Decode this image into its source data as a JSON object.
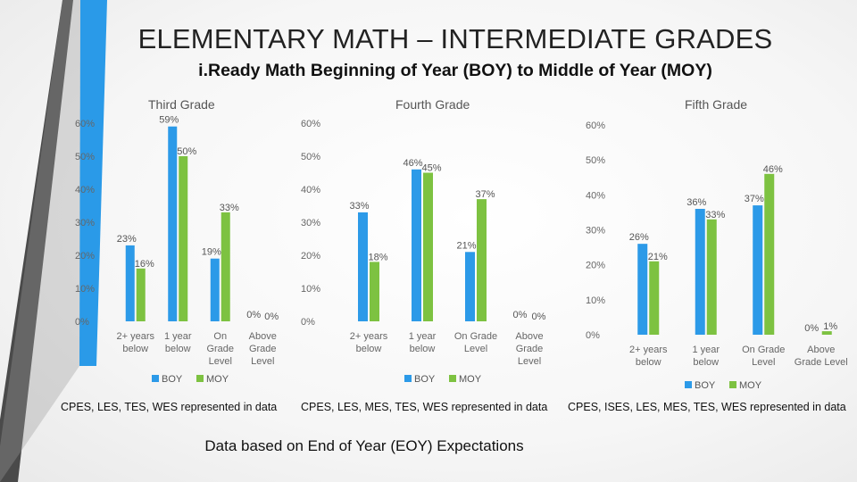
{
  "slide": {
    "title": "ELEMENTARY MATH – INTERMEDIATE GRADES",
    "subtitle": "i.Ready Math Beginning of Year (BOY) to Middle of Year (MOY)",
    "footer": "Data based on End of Year (EOY) Expectations"
  },
  "colors": {
    "boy": "#2c9ae8",
    "moy": "#7dc241",
    "accent_dark": "#4a4a4a",
    "accent_blue": "#2a9ae8"
  },
  "chart_data": [
    {
      "type": "bar",
      "title": "Third Grade",
      "note": "CPES, LES, TES, WES represented in data",
      "categories": [
        [
          "2+ years",
          "below"
        ],
        [
          "1 year",
          "below"
        ],
        [
          "On",
          "Grade",
          "Level"
        ],
        [
          "Above",
          "Grade",
          "Level"
        ]
      ],
      "series": [
        {
          "name": "BOY",
          "values": [
            23,
            59,
            19,
            0
          ],
          "labels": [
            "23%",
            "59%",
            "19%",
            "0%"
          ]
        },
        {
          "name": "MOY",
          "values": [
            16,
            50,
            33,
            0
          ],
          "labels": [
            "16%",
            "50%",
            "33%",
            "0%"
          ]
        }
      ],
      "yticks": [
        "0%",
        "10%",
        "20%",
        "30%",
        "40%",
        "50%",
        "60%"
      ],
      "ylim": [
        0,
        60
      ],
      "legend": "bottom",
      "grid": false
    },
    {
      "type": "bar",
      "title": "Fourth Grade",
      "note": "CPES, LES, MES, TES, WES represented in data",
      "categories": [
        [
          "2+ years",
          "below"
        ],
        [
          "1 year",
          "below"
        ],
        [
          "On Grade",
          "Level"
        ],
        [
          "Above",
          "Grade",
          "Level"
        ]
      ],
      "series": [
        {
          "name": "BOY",
          "values": [
            33,
            46,
            21,
            0
          ],
          "labels": [
            "33%",
            "46%",
            "21%",
            "0%"
          ]
        },
        {
          "name": "MOY",
          "values": [
            18,
            45,
            37,
            0
          ],
          "labels": [
            "18%",
            "45%",
            "37%",
            "0%"
          ]
        }
      ],
      "yticks": [
        "0%",
        "10%",
        "20%",
        "30%",
        "40%",
        "50%",
        "60%"
      ],
      "ylim": [
        0,
        60
      ],
      "legend": "bottom",
      "grid": false
    },
    {
      "type": "bar",
      "title": "Fifth Grade",
      "note": "CPES, ISES, LES, MES, TES, WES represented in data",
      "categories": [
        [
          "2+ years",
          "below"
        ],
        [
          "1 year",
          "below"
        ],
        [
          "On Grade",
          "Level"
        ],
        [
          "Above",
          "Grade Level"
        ]
      ],
      "series": [
        {
          "name": "BOY",
          "values": [
            26,
            36,
            37,
            0
          ],
          "labels": [
            "26%",
            "36%",
            "37%",
            "0%"
          ]
        },
        {
          "name": "MOY",
          "values": [
            21,
            33,
            46,
            1
          ],
          "labels": [
            "21%",
            "33%",
            "46%",
            "1%"
          ]
        }
      ],
      "yticks": [
        "0%",
        "10%",
        "20%",
        "30%",
        "40%",
        "50%",
        "60%"
      ],
      "ylim": [
        0,
        60
      ],
      "legend": "bottom",
      "grid": false
    }
  ]
}
